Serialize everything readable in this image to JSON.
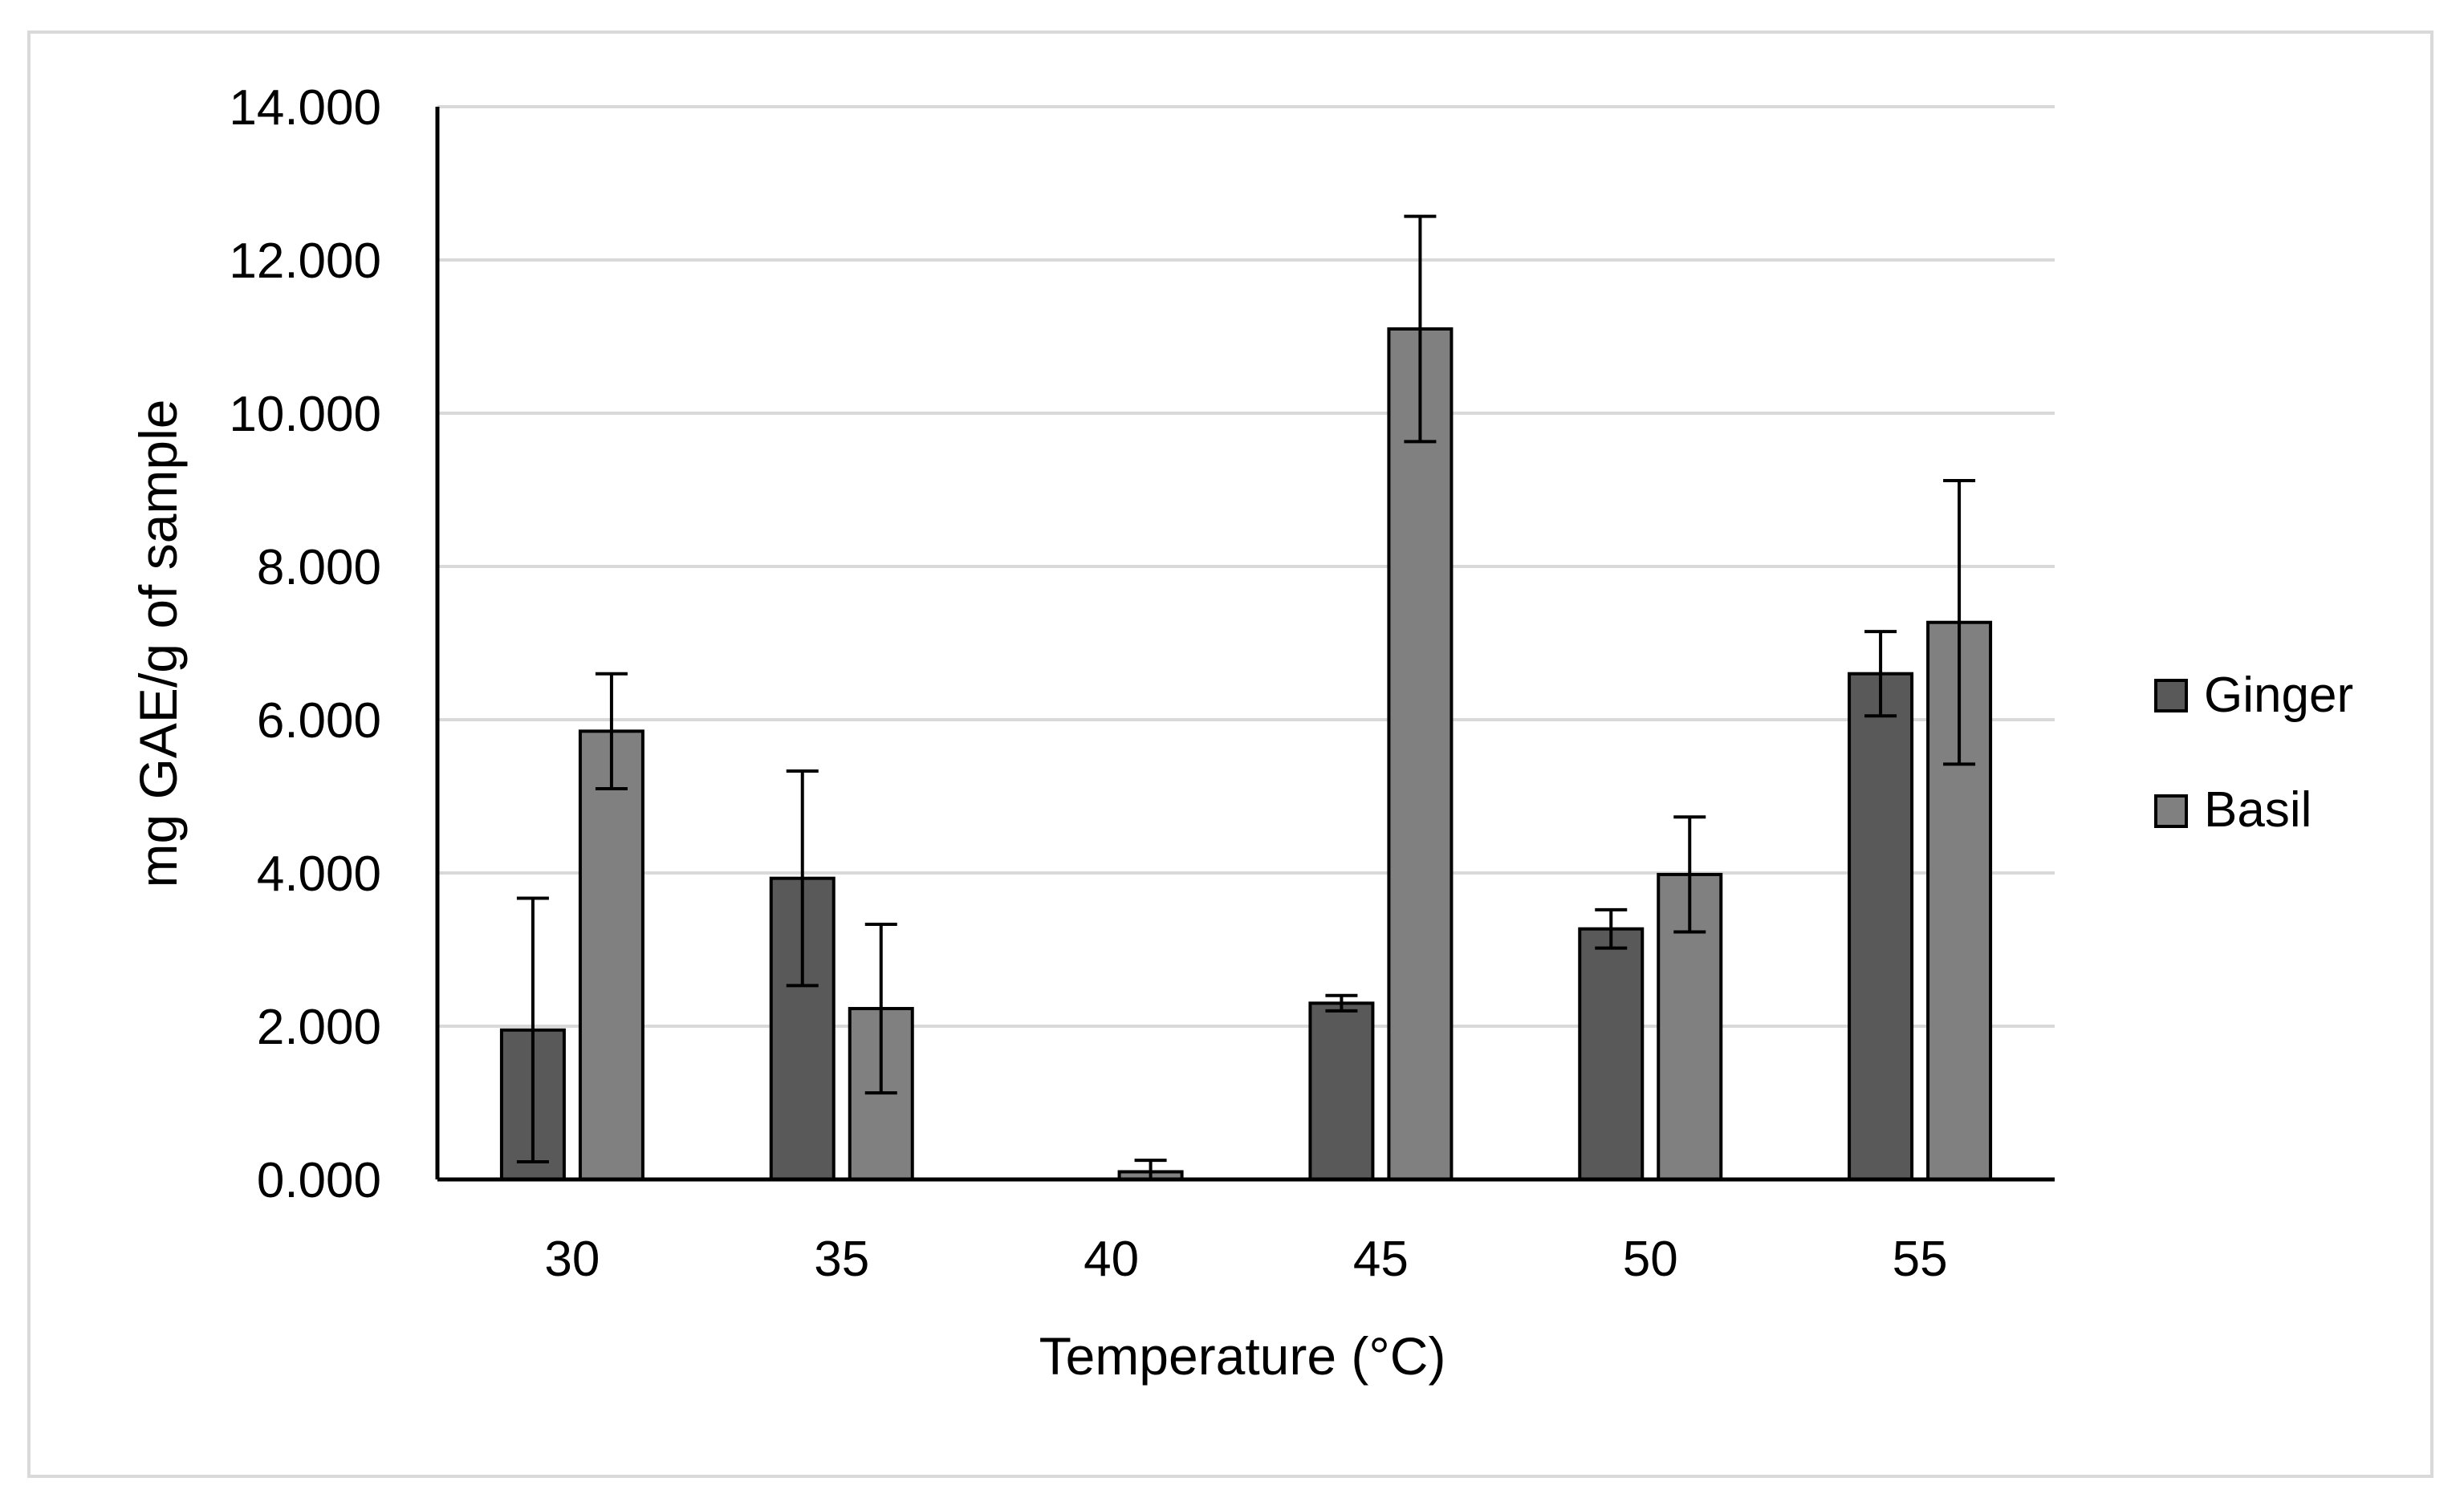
{
  "chart_data": {
    "type": "bar",
    "title": "",
    "xlabel": "Temperature (°C)",
    "ylabel": "mg GAE/g of sample",
    "categories": [
      "30",
      "35",
      "40",
      "45",
      "50",
      "55"
    ],
    "ylim": [
      0,
      14
    ],
    "yticks": [
      0,
      2,
      4,
      6,
      8,
      10,
      12,
      14
    ],
    "ytick_labels": [
      "0.000",
      "2.000",
      "4.000",
      "6.000",
      "8.000",
      "10.000",
      "12.000",
      "14.000"
    ],
    "grid": true,
    "legend_position": "right",
    "series": [
      {
        "name": "Ginger",
        "color": "#595959",
        "values": [
          1.95,
          3.93,
          0.0,
          2.3,
          3.27,
          6.6
        ],
        "errors": [
          1.72,
          1.4,
          0.0,
          0.1,
          0.25,
          0.55
        ]
      },
      {
        "name": "Basil",
        "color": "#808080",
        "values": [
          5.85,
          2.23,
          0.1,
          11.1,
          3.98,
          7.27
        ],
        "errors": [
          0.75,
          1.1,
          0.15,
          1.47,
          0.75,
          1.85
        ]
      }
    ]
  }
}
